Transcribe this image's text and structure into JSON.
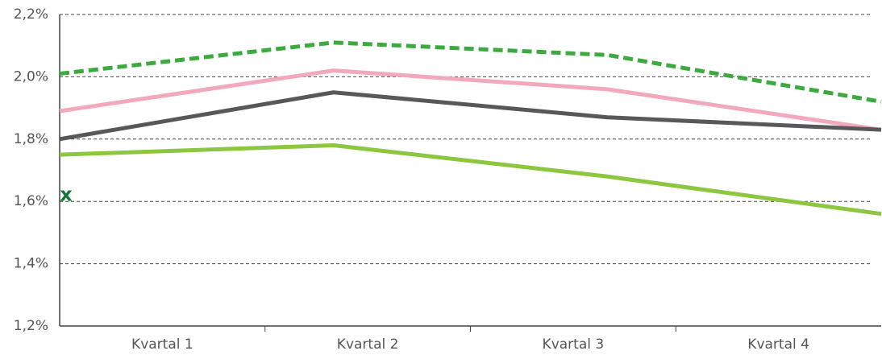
{
  "chart_data": {
    "type": "line",
    "categories": [
      "Kvartal 1",
      "Kvartal 2",
      "Kvartal 3",
      "Kvartal 4"
    ],
    "series": [
      {
        "color": "#3daa3f",
        "dashed": true,
        "values": [
          2.01,
          2.11,
          2.07,
          1.92
        ]
      },
      {
        "color": "#f2a9bb",
        "dashed": false,
        "values": [
          1.89,
          2.02,
          1.96,
          1.83
        ]
      },
      {
        "color": "#58585a",
        "dashed": false,
        "values": [
          1.8,
          1.95,
          1.87,
          1.83
        ]
      },
      {
        "color": "#8dc63f",
        "dashed": false,
        "values": [
          1.75,
          1.78,
          1.68,
          1.56
        ]
      }
    ],
    "annotation": {
      "text": "x",
      "y": 1.62,
      "color": "#13773a"
    },
    "ylim": [
      1.2,
      2.2
    ],
    "yticks": [
      {
        "value": 1.2,
        "label": "1,2%"
      },
      {
        "value": 1.4,
        "label": "1,4%"
      },
      {
        "value": 1.6,
        "label": "1,6%"
      },
      {
        "value": 1.8,
        "label": "1,8%"
      },
      {
        "value": 2.0,
        "label": "2,0%"
      },
      {
        "value": 2.2,
        "label": "2,2%"
      }
    ],
    "grid": true
  }
}
